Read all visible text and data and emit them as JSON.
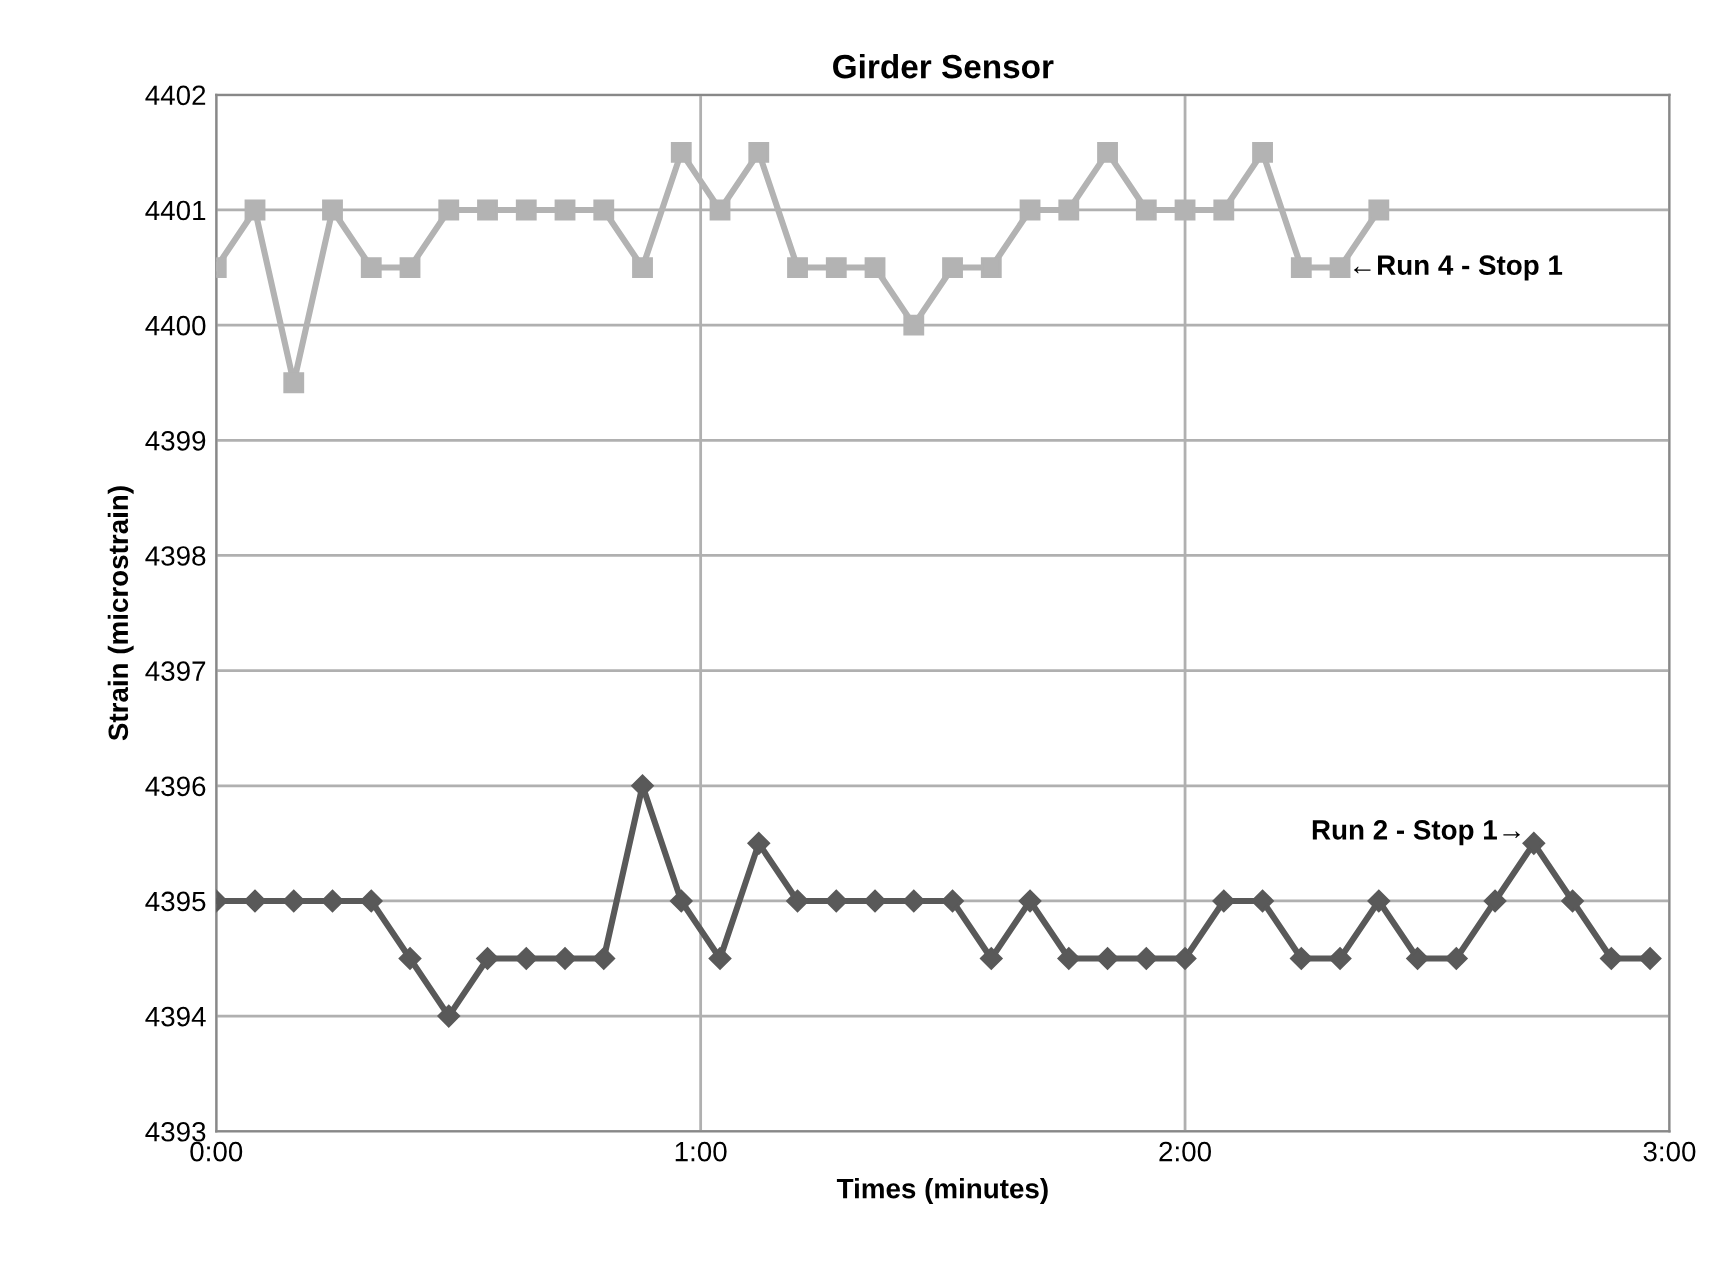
{
  "chart_data": {
    "type": "line",
    "title": "Girder Sensor",
    "xlabel": "Times (minutes)",
    "ylabel": "Strain (microstrain)",
    "xlim": [
      0,
      3
    ],
    "xticks": [
      {
        "value": 0,
        "label": "0:00"
      },
      {
        "value": 1,
        "label": "1:00"
      },
      {
        "value": 2,
        "label": "2:00"
      },
      {
        "value": 3,
        "label": "3:00"
      }
    ],
    "ylim": [
      4393,
      4402
    ],
    "yticks": [
      4393,
      4394,
      4395,
      4396,
      4397,
      4398,
      4399,
      4400,
      4401,
      4402
    ],
    "grid": true,
    "line_style": "solid",
    "series": [
      {
        "color": "#b3b3b3",
        "marker": "square",
        "x": [
          0,
          0.08,
          0.16,
          0.24,
          0.32,
          0.4,
          0.48,
          0.56,
          0.64,
          0.72,
          0.8,
          0.88,
          0.96,
          1.04,
          1.12,
          1.2,
          1.28,
          1.36,
          1.44,
          1.52,
          1.6,
          1.68,
          1.76,
          1.84,
          1.92,
          2.0,
          2.08,
          2.16,
          2.24,
          2.32,
          2.4
        ],
        "values": [
          4400.5,
          4401,
          4399.5,
          4401,
          4400.5,
          4400.5,
          4401,
          4401,
          4401,
          4401,
          4401,
          4400.5,
          4401.5,
          4401,
          4401.5,
          4400.5,
          4400.5,
          4400.5,
          4400,
          4400.5,
          4400.5,
          4401,
          4401,
          4401.5,
          4401,
          4401,
          4401,
          4401.5,
          4400.5,
          4400.5,
          4401
        ]
      },
      {
        "color": "#595959",
        "marker": "diamond",
        "x": [
          0,
          0.08,
          0.16,
          0.24,
          0.32,
          0.4,
          0.48,
          0.56,
          0.64,
          0.72,
          0.8,
          0.88,
          0.96,
          1.04,
          1.12,
          1.2,
          1.28,
          1.36,
          1.44,
          1.52,
          1.6,
          1.68,
          1.76,
          1.84,
          1.92,
          2.0,
          2.08,
          2.16,
          2.24,
          2.32,
          2.4,
          2.48,
          2.56,
          2.64,
          2.72,
          2.8,
          2.88,
          2.96
        ],
        "values": [
          4395,
          4395,
          4395,
          4395,
          4395,
          4394.5,
          4394,
          4394.5,
          4394.5,
          4394.5,
          4394.5,
          4396,
          4395,
          4394.5,
          4395.5,
          4395,
          4395,
          4395,
          4395,
          4395,
          4394.5,
          4395,
          4394.5,
          4394.5,
          4394.5,
          4394.5,
          4395,
          4395,
          4394.5,
          4394.5,
          4395,
          4394.5,
          4394.5,
          4395,
          4395.5,
          4395,
          4394.5,
          4394.5
        ]
      }
    ],
    "annotations": [
      {
        "text": "←Run 4 - Stop 1",
        "x": 2.32,
        "y": 4400.5
      },
      {
        "text": "Run 2 - Stop 1→",
        "x": 2.72,
        "y": 4395.5
      }
    ]
  }
}
